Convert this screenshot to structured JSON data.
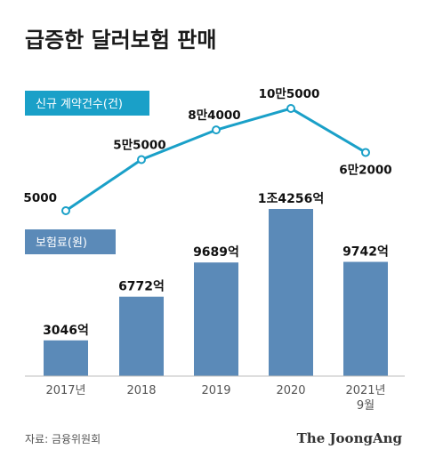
{
  "title": "급증한 달러보험 판매",
  "legend_contracts": "신규 계약건수(건)",
  "legend_premium": "보험료(원)",
  "source": "자료: 금융위원회",
  "brand": "The JoongAng",
  "colors": {
    "line": "#1aa0c8",
    "bar": "#5b8ab8",
    "pill_contracts": "#1aa0c8",
    "pill_premium": "#5b8ab8"
  },
  "chart_data": {
    "type": "bar+line",
    "categories": [
      "2017년",
      "2018",
      "2019",
      "2020",
      "2021년 9월"
    ],
    "category_lines": [
      [
        "2017년"
      ],
      [
        "2018"
      ],
      [
        "2019"
      ],
      [
        "2020"
      ],
      [
        "2021년",
        "9월"
      ]
    ],
    "series": [
      {
        "name": "신규 계약건수(건)",
        "type": "line",
        "values": [
          5000,
          55000,
          84000,
          105000,
          62000
        ],
        "labels": [
          "5000",
          "5만5000",
          "8만4000",
          "10만5000",
          "6만2000"
        ]
      },
      {
        "name": "보험료(원)",
        "type": "bar",
        "values": [
          3046,
          6772,
          9689,
          14256,
          9742
        ],
        "unit": "억",
        "labels": [
          "3046억",
          "6772억",
          "9689억",
          "1조4256억",
          "9742억"
        ]
      }
    ]
  }
}
